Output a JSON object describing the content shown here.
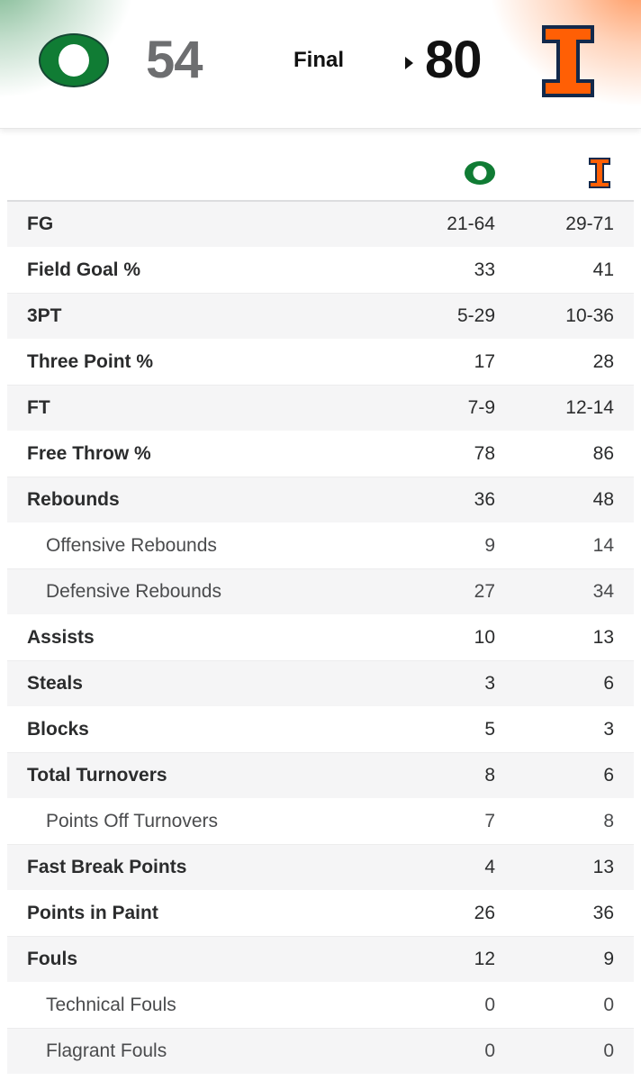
{
  "colors": {
    "away_primary": "#154733",
    "away_accent": "#107c34",
    "home_primary": "#ff5f05",
    "home_outline": "#13294b",
    "text": "#2b2c2d",
    "row_shade": "#f5f5f6"
  },
  "game": {
    "away": {
      "logo_icon": "oregon-o-logo",
      "score": "54"
    },
    "status": "Final",
    "home": {
      "logo_icon": "illinois-i-logo",
      "score": "80",
      "winner": true
    }
  },
  "stats": {
    "rows": [
      {
        "label": "FG",
        "away": "21-64",
        "home": "29-71",
        "sub": false
      },
      {
        "label": "Field Goal %",
        "away": "33",
        "home": "41",
        "sub": false
      },
      {
        "label": "3PT",
        "away": "5-29",
        "home": "10-36",
        "sub": false
      },
      {
        "label": "Three Point %",
        "away": "17",
        "home": "28",
        "sub": false
      },
      {
        "label": "FT",
        "away": "7-9",
        "home": "12-14",
        "sub": false
      },
      {
        "label": "Free Throw %",
        "away": "78",
        "home": "86",
        "sub": false
      },
      {
        "label": "Rebounds",
        "away": "36",
        "home": "48",
        "sub": false
      },
      {
        "label": "Offensive Rebounds",
        "away": "9",
        "home": "14",
        "sub": true
      },
      {
        "label": "Defensive Rebounds",
        "away": "27",
        "home": "34",
        "sub": true
      },
      {
        "label": "Assists",
        "away": "10",
        "home": "13",
        "sub": false
      },
      {
        "label": "Steals",
        "away": "3",
        "home": "6",
        "sub": false
      },
      {
        "label": "Blocks",
        "away": "5",
        "home": "3",
        "sub": false
      },
      {
        "label": "Total Turnovers",
        "away": "8",
        "home": "6",
        "sub": false
      },
      {
        "label": "Points Off Turnovers",
        "away": "7",
        "home": "8",
        "sub": true
      },
      {
        "label": "Fast Break Points",
        "away": "4",
        "home": "13",
        "sub": false
      },
      {
        "label": "Points in Paint",
        "away": "26",
        "home": "36",
        "sub": false
      },
      {
        "label": "Fouls",
        "away": "12",
        "home": "9",
        "sub": false
      },
      {
        "label": "Technical Fouls",
        "away": "0",
        "home": "0",
        "sub": true
      },
      {
        "label": "Flagrant Fouls",
        "away": "0",
        "home": "0",
        "sub": true
      }
    ]
  }
}
